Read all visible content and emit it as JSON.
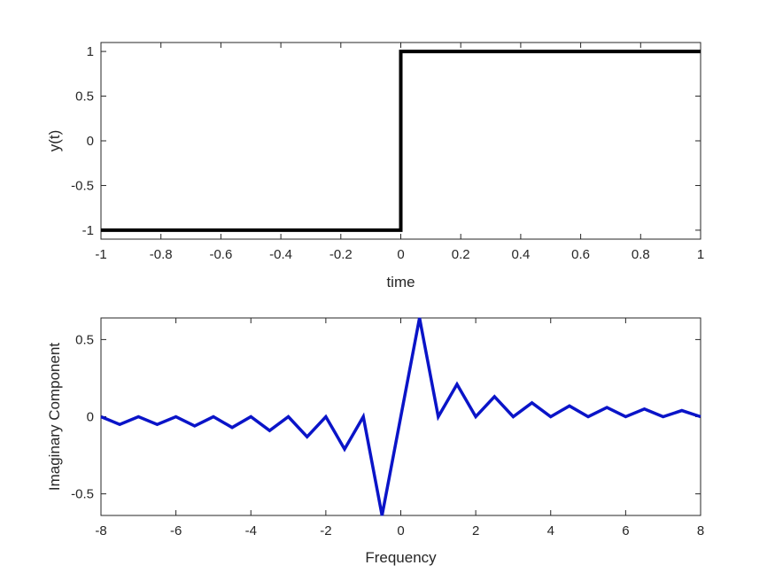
{
  "chart_data": [
    {
      "type": "line",
      "title": "",
      "xlabel": "time",
      "ylabel": "y(t)",
      "xlim": [
        -1,
        1
      ],
      "ylim": [
        -1.1,
        1.1
      ],
      "xticks": [
        "-1",
        "-0.8",
        "-0.6",
        "-0.4",
        "-0.2",
        "0",
        "0.2",
        "0.4",
        "0.6",
        "0.8",
        "1"
      ],
      "yticks": [
        "-1",
        "-0.5",
        "0",
        "0.5",
        "1"
      ],
      "grid": false,
      "color": "#000000",
      "series": [
        {
          "x": [
            -1,
            0,
            0,
            1
          ],
          "y": [
            -1,
            -1,
            1,
            1
          ]
        }
      ]
    },
    {
      "type": "line",
      "title": "",
      "xlabel": "Frequency",
      "ylabel": "Imaginary Component",
      "xlim": [
        -8,
        8
      ],
      "ylim": [
        -0.64,
        0.64
      ],
      "xticks": [
        "-8",
        "-6",
        "-4",
        "-2",
        "0",
        "2",
        "4",
        "6",
        "8"
      ],
      "yticks": [
        "-0.5",
        "0",
        "0.5"
      ],
      "grid": false,
      "color": "#0a14c8",
      "series": [
        {
          "x": [
            -8,
            -7.5,
            -7,
            -6.5,
            -6,
            -5.5,
            -5,
            -4.5,
            -4,
            -3.5,
            -3,
            -2.5,
            -2,
            -1.5,
            -1,
            -0.5,
            0,
            0.5,
            1,
            1.5,
            2,
            2.5,
            3,
            3.5,
            4,
            4.5,
            5,
            5.5,
            6,
            6.5,
            7,
            7.5,
            8
          ],
          "y": [
            0,
            -0.05,
            0,
            -0.05,
            0,
            -0.06,
            0,
            -0.07,
            0,
            -0.09,
            0,
            -0.13,
            0,
            -0.21,
            0,
            -0.64,
            0,
            0.64,
            0,
            0.21,
            0,
            0.13,
            0,
            0.09,
            0,
            0.07,
            0,
            0.06,
            0,
            0.05,
            0,
            0.04,
            0
          ]
        }
      ]
    }
  ]
}
